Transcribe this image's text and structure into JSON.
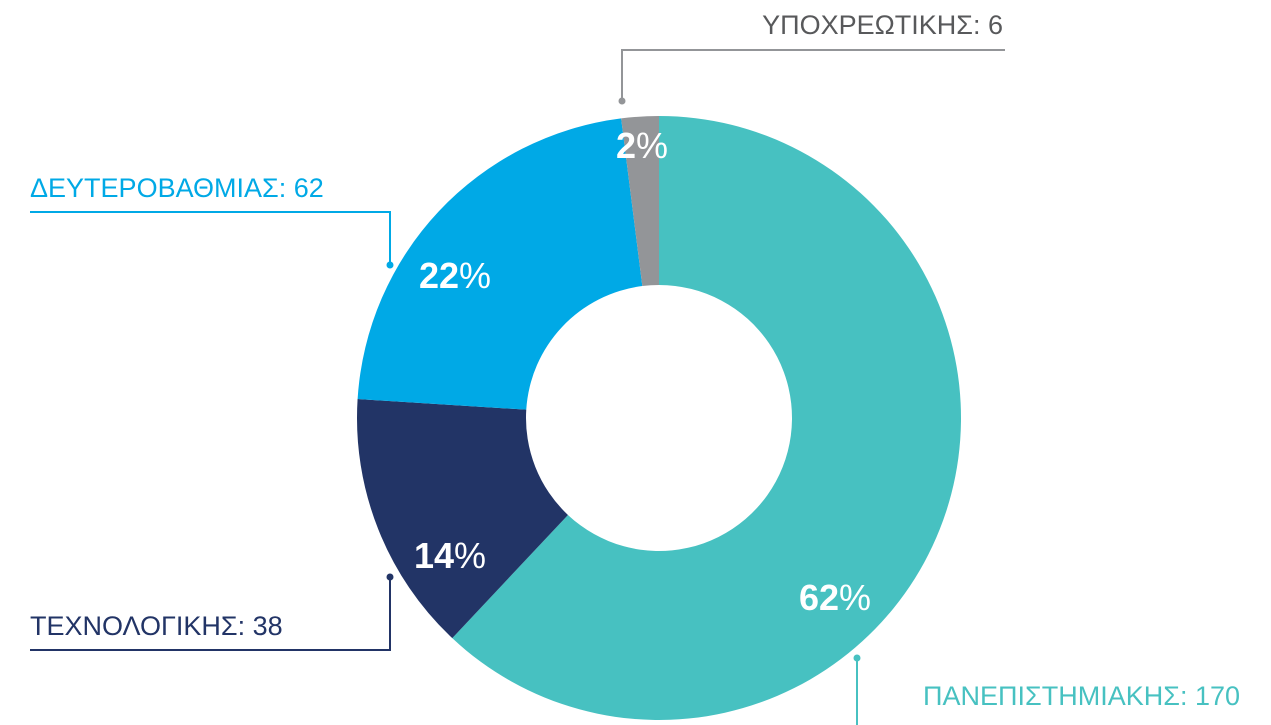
{
  "chart_data": {
    "type": "donut",
    "categories": [
      "ΠΑΝΕΠΙΣΤΗΜΙΑΚΗΣ: 170",
      "ΤΕΧΝΟΛΟΓΙΚΗΣ: 38",
      "ΔΕΥΤΕΡΟΒΑΘΜΙΑΣ: 62",
      "ΥΠΟΧΡΕΩΤΙΚΗΣ: 6"
    ],
    "values": [
      62,
      14,
      22,
      2
    ],
    "value_labels": [
      "62%",
      "14%",
      "22%",
      "2%"
    ],
    "colors": [
      "#47c1c1",
      "#223466",
      "#00a9e6",
      "#939598"
    ]
  }
}
